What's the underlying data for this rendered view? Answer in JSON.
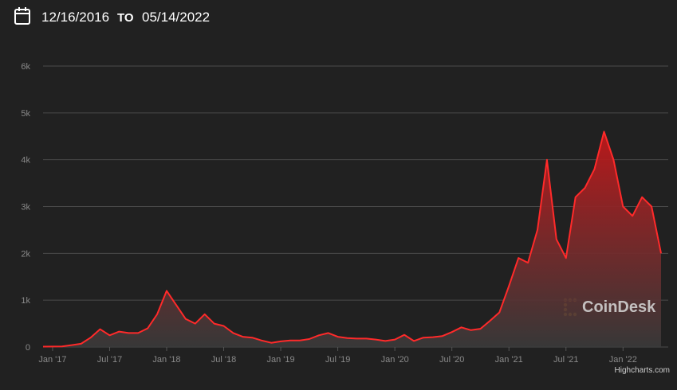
{
  "header": {
    "from": "12/16/2016",
    "separator": "TO",
    "to": "05/14/2022"
  },
  "chart_data": {
    "type": "area",
    "x": [
      "2016-12",
      "2017-01",
      "2017-02",
      "2017-03",
      "2017-04",
      "2017-05",
      "2017-06",
      "2017-07",
      "2017-08",
      "2017-09",
      "2017-10",
      "2017-11",
      "2017-12",
      "2018-01",
      "2018-02",
      "2018-03",
      "2018-04",
      "2018-05",
      "2018-06",
      "2018-07",
      "2018-08",
      "2018-09",
      "2018-10",
      "2018-11",
      "2018-12",
      "2019-01",
      "2019-02",
      "2019-03",
      "2019-04",
      "2019-05",
      "2019-06",
      "2019-07",
      "2019-08",
      "2019-09",
      "2019-10",
      "2019-11",
      "2019-12",
      "2020-01",
      "2020-02",
      "2020-03",
      "2020-04",
      "2020-05",
      "2020-06",
      "2020-07",
      "2020-08",
      "2020-09",
      "2020-10",
      "2020-11",
      "2020-12",
      "2021-01",
      "2021-02",
      "2021-03",
      "2021-04",
      "2021-05",
      "2021-06",
      "2021-07",
      "2021-08",
      "2021-09",
      "2021-10",
      "2021-11",
      "2021-12",
      "2022-01",
      "2022-02",
      "2022-03",
      "2022-04",
      "2022-05"
    ],
    "values": [
      8,
      10,
      12,
      40,
      70,
      200,
      380,
      250,
      330,
      300,
      300,
      400,
      700,
      1200,
      900,
      600,
      500,
      700,
      500,
      450,
      300,
      220,
      200,
      140,
      90,
      120,
      140,
      140,
      170,
      250,
      300,
      220,
      190,
      180,
      180,
      160,
      130,
      160,
      260,
      130,
      200,
      210,
      235,
      320,
      420,
      360,
      390,
      560,
      740,
      1300,
      1900,
      1800,
      2500,
      4000,
      2300,
      1900,
      3200,
      3400,
      3800,
      4600,
      4000,
      3000,
      2800,
      3200,
      3000,
      2000
    ],
    "color": "#ff2a2a",
    "xlim": [
      "2016-12",
      "2022-05"
    ],
    "xticks": [
      {
        "value": "2017-01",
        "label": "Jan '17"
      },
      {
        "value": "2017-07",
        "label": "Jul '17"
      },
      {
        "value": "2018-01",
        "label": "Jan '18"
      },
      {
        "value": "2018-07",
        "label": "Jul '18"
      },
      {
        "value": "2019-01",
        "label": "Jan '19"
      },
      {
        "value": "2019-07",
        "label": "Jul '19"
      },
      {
        "value": "2020-01",
        "label": "Jan '20"
      },
      {
        "value": "2020-07",
        "label": "Jul '20"
      },
      {
        "value": "2021-01",
        "label": "Jan '21"
      },
      {
        "value": "2021-07",
        "label": "Jul '21"
      },
      {
        "value": "2022-01",
        "label": "Jan '22"
      }
    ],
    "ylim": [
      0,
      6000
    ],
    "yticks": [
      0,
      {
        "value": 1000,
        "label": "1k"
      },
      {
        "value": 2000,
        "label": "2k"
      },
      {
        "value": 3000,
        "label": "3k"
      },
      {
        "value": 4000,
        "label": "4k"
      },
      {
        "value": 5000,
        "label": "5k"
      },
      {
        "value": 6000,
        "label": "6k"
      }
    ],
    "grid": true,
    "watermark": "CoinDesk",
    "credit": "Highcharts.com"
  }
}
